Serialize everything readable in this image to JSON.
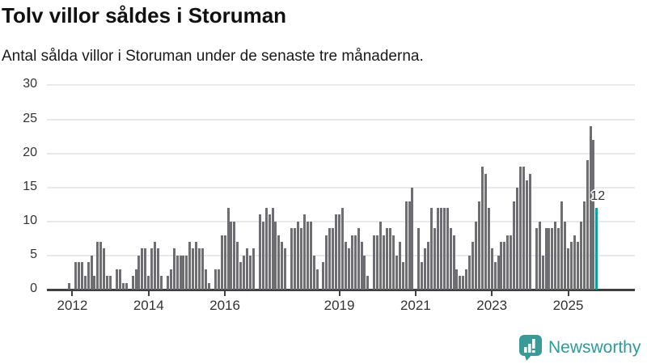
{
  "footer": {
    "brand": "Newsworthy"
  },
  "chart_data": {
    "type": "bar",
    "title": "Tolv villor såldes i Storuman",
    "subtitle": "Antal sålda villor i Storuman under de senaste tre månaderna.",
    "ylabel": "",
    "xlabel": "",
    "ylim": [
      0,
      30
    ],
    "y_ticks": [
      0,
      5,
      10,
      15,
      20,
      25,
      30
    ],
    "grid": true,
    "period_start": "2011-12",
    "period_end": "2025-10",
    "values": [
      1,
      0,
      4,
      4,
      4,
      2,
      4,
      5,
      2,
      7,
      7,
      6,
      2,
      2,
      0,
      3,
      3,
      1,
      1,
      0,
      2,
      3,
      5,
      6,
      6,
      2,
      6,
      7,
      6,
      2,
      0,
      2,
      3,
      6,
      5,
      5,
      5,
      5,
      7,
      6,
      7,
      6,
      6,
      3,
      1,
      0,
      3,
      3,
      8,
      8,
      12,
      10,
      10,
      7,
      4,
      5,
      6,
      5,
      6,
      0,
      11,
      10,
      12,
      11,
      12,
      10,
      8,
      7,
      6,
      0,
      9,
      9,
      10,
      9,
      11,
      10,
      10,
      5,
      3,
      0,
      4,
      8,
      9,
      9,
      11,
      11,
      12,
      7,
      6,
      8,
      8,
      9,
      7,
      5,
      2,
      0,
      8,
      8,
      10,
      8,
      9,
      9,
      8,
      5,
      7,
      4,
      13,
      13,
      15,
      0,
      9,
      4,
      6,
      7,
      12,
      9,
      12,
      12,
      12,
      12,
      9,
      8,
      3,
      2,
      2,
      3,
      5,
      7,
      10,
      13,
      18,
      17,
      12,
      6,
      4,
      5,
      7,
      7,
      8,
      8,
      13,
      15,
      18,
      18,
      16,
      17,
      0,
      9,
      10,
      5,
      9,
      9,
      9,
      10,
      9,
      13,
      10,
      6,
      7,
      8,
      7,
      10,
      13,
      19,
      24,
      22,
      12
    ],
    "x_ticks": [
      {
        "label": "2012",
        "index": 1
      },
      {
        "label": "2014",
        "index": 25
      },
      {
        "label": "2016",
        "index": 49
      },
      {
        "label": "2019",
        "index": 85
      },
      {
        "label": "2021",
        "index": 109
      },
      {
        "label": "2023",
        "index": 133
      },
      {
        "label": "2025",
        "index": 157
      }
    ],
    "highlight_last": true,
    "highlight_value_label": "12",
    "bar_color": "#6e6e72",
    "highlight_color": "#0d9e9e",
    "axis_color": "#404040",
    "gridline_color": "#e9e9e9",
    "label_color": "#333333",
    "brand_color": "#2e9a9a"
  }
}
